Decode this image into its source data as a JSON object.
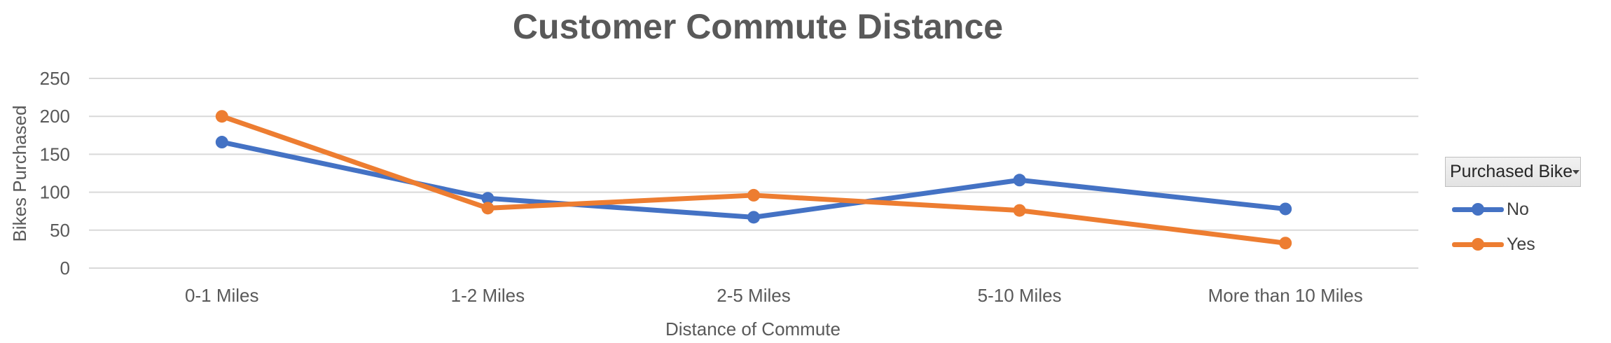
{
  "chart_data": {
    "type": "line",
    "title": "Customer Commute Distance",
    "xlabel": "Distance of Commute",
    "ylabel": "Bikes Purchased",
    "categories": [
      "0-1 Miles",
      "1-2 Miles",
      "2-5 Miles",
      "5-10 Miles",
      "More than 10 Miles"
    ],
    "ylim": [
      0,
      250
    ],
    "yticks": [
      0,
      50,
      100,
      150,
      200,
      250
    ],
    "grid": true,
    "legend_position": "right",
    "legend_title": "Purchased Bike",
    "series": [
      {
        "name": "No",
        "color": "#4472C4",
        "values": [
          166,
          92,
          67,
          116,
          78
        ]
      },
      {
        "name": "Yes",
        "color": "#ED7D31",
        "values": [
          200,
          79,
          96,
          76,
          33
        ]
      }
    ]
  },
  "icons": {
    "legend_dropdown": "chevron-down-icon"
  }
}
